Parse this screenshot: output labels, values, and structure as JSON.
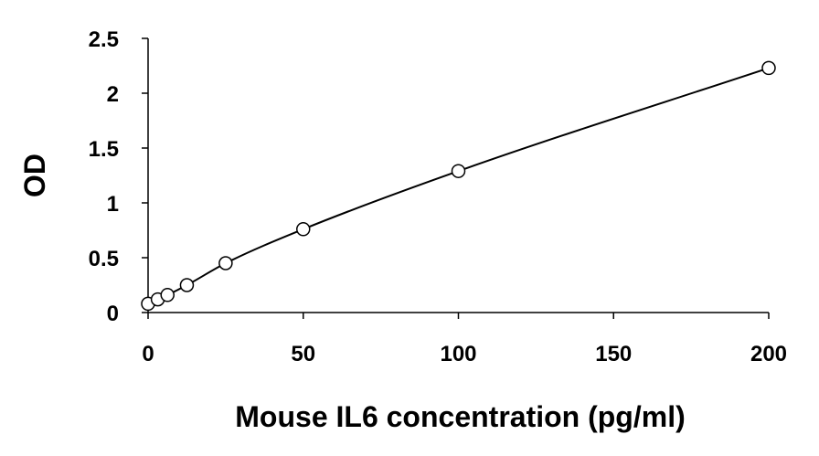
{
  "chart_data": {
    "type": "scatter",
    "title": "",
    "xlabel": "Mouse IL6 concentration (pg/ml)",
    "ylabel": "OD",
    "xlim": [
      0,
      200
    ],
    "ylim": [
      0,
      2.5
    ],
    "x_ticks": [
      "0",
      "50",
      "100",
      "150",
      "200"
    ],
    "y_ticks": [
      "0",
      "0.5",
      "1",
      "1.5",
      "2",
      "2.5"
    ],
    "grid": false,
    "legend": "none",
    "marker": "open-circle",
    "trendline": "smooth-fit",
    "colors": {
      "marker_stroke": "#000000",
      "marker_fill": "#ffffff",
      "line": "#000000",
      "axis": "#000000"
    },
    "series": [
      {
        "x": [
          0,
          3.125,
          6.25,
          12.5,
          25,
          50,
          100,
          200
        ],
        "y": [
          0.08,
          0.12,
          0.16,
          0.25,
          0.45,
          0.76,
          1.29,
          2.23
        ]
      }
    ]
  }
}
